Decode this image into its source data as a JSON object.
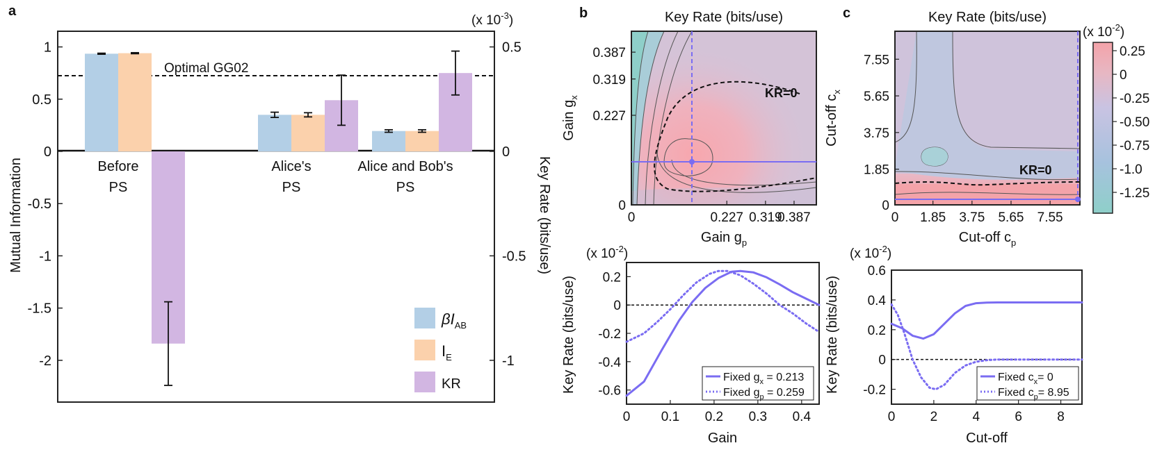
{
  "panel_labels": {
    "a": "a",
    "b": "b",
    "c": "c"
  },
  "colors": {
    "beta_iab": "#b3cfe6",
    "ie": "#fbd1ac",
    "kr": "#d2b6e2",
    "curve": "#7a6cf2",
    "cont_low": "#8ecfc9",
    "cont_mid": "#c9c3e2",
    "cont_high": "#f4a3a9"
  },
  "chart_data": [
    {
      "id": "a",
      "type": "bar",
      "categories": [
        "Before PS",
        "Alice's PS",
        "Alice and Bob's PS"
      ],
      "category_lines": [
        [
          "Before",
          "PS"
        ],
        [
          "Alice's",
          "PS"
        ],
        [
          "Alice and Bob's",
          "PS"
        ]
      ],
      "series": [
        {
          "name": "βI_AB",
          "legend": [
            "βI",
            "AB"
          ],
          "axis": "left",
          "values": [
            0.935,
            0.35,
            0.195
          ],
          "errors": [
            0.005,
            0.025,
            0.012
          ]
        },
        {
          "name": "I_E",
          "legend": [
            "I",
            "E"
          ],
          "axis": "left",
          "values": [
            0.94,
            0.35,
            0.195
          ],
          "errors": [
            0.005,
            0.02,
            0.012
          ]
        },
        {
          "name": "KR",
          "legend": [
            "KR",
            ""
          ],
          "axis": "right",
          "values": [
            -0.92,
            0.245,
            0.375
          ],
          "errors": [
            0.2,
            0.12,
            0.105
          ]
        }
      ],
      "ylabel": "Mutual Information",
      "ylim": [
        -2.4,
        1.15
      ],
      "yticks": [
        "1",
        "0.5",
        "0",
        "-0.5",
        "-1",
        "-1.5",
        "-2"
      ],
      "y2label": "Key Rate (bits/use)",
      "y2_multiplier": "(x 10",
      "y2_multiplier_exp": "-3",
      "y2lim": [
        -1.2,
        0.575
      ],
      "y2ticks": [
        "0.5",
        "0",
        "-0.5",
        "-1"
      ],
      "reference_line": {
        "label": "Optimal GG02",
        "value": 0.725
      }
    },
    {
      "id": "b-top",
      "type": "heatmap",
      "title": "Key Rate (bits/use)",
      "xlabel": "Gain g",
      "xlabel_sub": "p",
      "ylabel": "Gain g",
      "ylabel_sub": "x",
      "xticks": [
        "0",
        "0.227",
        "0.319",
        "0.387"
      ],
      "yticks": [
        "0.387",
        "0.319",
        "0.227",
        "0"
      ],
      "xlim": [
        0,
        0.44
      ],
      "ylim": [
        0,
        0.44
      ],
      "lines": {
        "horizontal_gx": 0.213,
        "vertical_gp": 0.259
      },
      "annotation": "KR=0"
    },
    {
      "id": "c-top",
      "type": "heatmap",
      "title": "Key Rate (bits/use)",
      "xlabel": "Cut-off c",
      "xlabel_sub": "p",
      "ylabel": "Cut-off c",
      "ylabel_sub": "x",
      "xticks": [
        "0",
        "1.85",
        "3.75",
        "5.65",
        "7.55"
      ],
      "yticks": [
        "7.55",
        "5.65",
        "3.75",
        "1.85",
        "0"
      ],
      "xlim": [
        0,
        9
      ],
      "ylim": [
        0,
        9
      ],
      "lines": {
        "horizontal_cx": 0,
        "vertical_cp": 8.95
      },
      "annotation": "KR=0",
      "colorbar": {
        "multiplier": "(x 10",
        "multiplier_exp": "-2",
        "ticks": [
          "0.25",
          "0",
          "-0.25",
          "-0.50",
          "-0.75",
          "-1.0",
          "-1.25"
        ]
      }
    },
    {
      "id": "b-bottom",
      "type": "line",
      "xlabel": "Gain",
      "ylabel": "Key Rate (bits/use)",
      "y_multiplier": "(x 10",
      "y_multiplier_exp": "-2",
      "xlim": [
        0,
        0.44
      ],
      "ylim": [
        -0.7,
        0.3
      ],
      "xticks": [
        "0",
        "0.1",
        "0.2",
        "0.3",
        "0.4"
      ],
      "yticks": [
        "0.2",
        "0",
        "-0.2",
        "-0.4",
        "-0.6"
      ],
      "series": [
        {
          "name": "Fixed g_x = 0.213",
          "legend": [
            "Fixed g",
            "x",
            " = 0.213"
          ],
          "style": "solid",
          "x": [
            0,
            0.04,
            0.08,
            0.12,
            0.15,
            0.18,
            0.21,
            0.24,
            0.26,
            0.29,
            0.32,
            0.35,
            0.38,
            0.41,
            0.44
          ],
          "y": [
            -0.64,
            -0.54,
            -0.32,
            -0.11,
            0.02,
            0.12,
            0.19,
            0.235,
            0.24,
            0.23,
            0.195,
            0.145,
            0.09,
            0.045,
            0.0
          ]
        },
        {
          "name": "Fixed g_p = 0.259",
          "legend": [
            "Fixed g",
            "p",
            " = 0.259"
          ],
          "style": "dotted",
          "x": [
            0,
            0.04,
            0.07,
            0.1,
            0.13,
            0.16,
            0.19,
            0.21,
            0.23,
            0.26,
            0.29,
            0.32,
            0.35,
            0.38,
            0.41,
            0.44
          ],
          "y": [
            -0.26,
            -0.2,
            -0.12,
            -0.03,
            0.07,
            0.16,
            0.22,
            0.24,
            0.24,
            0.21,
            0.15,
            0.08,
            0.0,
            -0.06,
            -0.13,
            -0.19
          ]
        }
      ],
      "reference_line": 0
    },
    {
      "id": "c-bottom",
      "type": "line",
      "xlabel": "Cut-off",
      "ylabel": "Key Rate (bits/use)",
      "y_multiplier": "(x 10",
      "y_multiplier_exp": "-2",
      "xlim": [
        0,
        9
      ],
      "ylim": [
        -0.3,
        0.6
      ],
      "xticks": [
        "0",
        "2",
        "4",
        "6",
        "8"
      ],
      "yticks": [
        "0.6",
        "0.4",
        "0.2",
        "0",
        "-0.2"
      ],
      "series": [
        {
          "name": "Fixed c_x = 0",
          "legend": [
            "Fixed c",
            "x",
            "= 0"
          ],
          "style": "solid",
          "x": [
            0,
            0.5,
            1,
            1.5,
            2,
            2.5,
            3,
            3.5,
            4,
            4.5,
            5,
            6,
            7,
            8,
            9
          ],
          "y": [
            0.24,
            0.21,
            0.16,
            0.14,
            0.17,
            0.24,
            0.31,
            0.36,
            0.378,
            0.382,
            0.383,
            0.383,
            0.383,
            0.383,
            0.383
          ]
        },
        {
          "name": "Fixed c_p = 8.95",
          "legend": [
            "Fixed c",
            "p",
            "= 8.95"
          ],
          "style": "dotted",
          "x": [
            0,
            0.3,
            0.6,
            1,
            1.4,
            1.8,
            2.1,
            2.5,
            3,
            3.5,
            4,
            4.5,
            5,
            6,
            7,
            9
          ],
          "y": [
            0.37,
            0.3,
            0.18,
            0.0,
            -0.12,
            -0.19,
            -0.2,
            -0.17,
            -0.09,
            -0.04,
            -0.015,
            -0.005,
            0.0,
            0.0,
            0.0,
            0.0
          ]
        }
      ],
      "reference_line": 0
    }
  ]
}
